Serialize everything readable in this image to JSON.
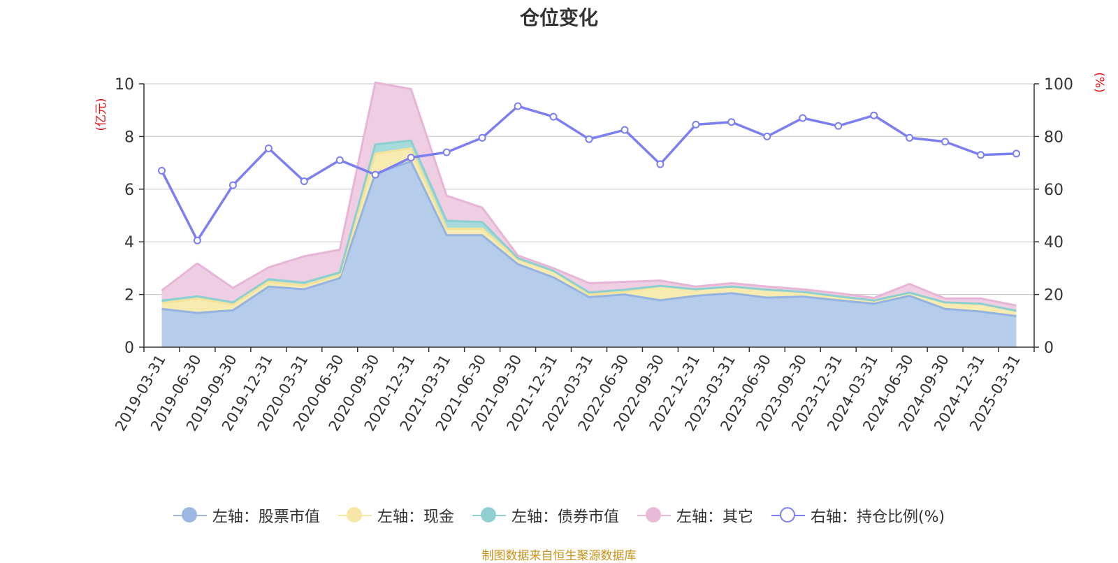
{
  "chart_data": {
    "type": "area",
    "title": "仓位变化",
    "left_unit": "(亿元)",
    "right_unit": "(%)",
    "left_ylim": [
      0,
      10
    ],
    "left_ticks": [
      0,
      2,
      4,
      6,
      8,
      10
    ],
    "right_ylim": [
      0,
      100
    ],
    "right_ticks": [
      0,
      20,
      40,
      60,
      80,
      100
    ],
    "categories": [
      "2019-03-31",
      "2019-06-30",
      "2019-09-30",
      "2019-12-31",
      "2020-03-31",
      "2020-06-30",
      "2020-09-30",
      "2020-12-31",
      "2021-03-31",
      "2021-06-30",
      "2021-09-30",
      "2021-12-31",
      "2022-03-31",
      "2022-06-30",
      "2022-09-30",
      "2022-12-31",
      "2023-03-31",
      "2023-06-30",
      "2023-09-30",
      "2023-12-31",
      "2024-03-31",
      "2024-06-30",
      "2024-09-30",
      "2024-12-31",
      "2025-03-31"
    ],
    "series": [
      {
        "name": "左轴：股票市值",
        "axis": "left",
        "kind": "stack",
        "values": [
          1.45,
          1.3,
          1.4,
          2.3,
          2.2,
          2.62,
          6.6,
          7.05,
          4.25,
          4.25,
          3.15,
          2.65,
          1.9,
          2.0,
          1.78,
          1.95,
          2.05,
          1.88,
          1.92,
          1.78,
          1.65,
          1.95,
          1.45,
          1.35,
          1.18
        ]
      },
      {
        "name": "左轴：现金",
        "axis": "left",
        "kind": "stack",
        "values": [
          0.22,
          0.55,
          0.22,
          0.18,
          0.15,
          0.12,
          0.75,
          0.5,
          0.25,
          0.25,
          0.18,
          0.25,
          0.1,
          0.1,
          0.55,
          0.25,
          0.25,
          0.3,
          0.18,
          0.15,
          0.12,
          0.12,
          0.25,
          0.3,
          0.2
        ]
      },
      {
        "name": "左轴：债券市值",
        "axis": "left",
        "kind": "stack",
        "values": [
          0.1,
          0.08,
          0.08,
          0.1,
          0.1,
          0.1,
          0.35,
          0.3,
          0.3,
          0.25,
          0.05,
          0.0,
          0.08,
          0.08,
          0.0,
          0.0,
          0.0,
          0.0,
          0.0,
          0.0,
          0.0,
          0.0,
          0.0,
          0.0,
          0.0
        ]
      },
      {
        "name": "左轴：其它",
        "axis": "left",
        "kind": "stack",
        "values": [
          0.38,
          1.25,
          0.55,
          0.45,
          1.0,
          0.86,
          2.35,
          1.95,
          0.95,
          0.55,
          0.1,
          0.1,
          0.35,
          0.3,
          0.2,
          0.1,
          0.13,
          0.12,
          0.1,
          0.12,
          0.1,
          0.33,
          0.15,
          0.2,
          0.2
        ]
      },
      {
        "name": "右轴：持仓比例(%)",
        "axis": "right",
        "kind": "line",
        "values": [
          67,
          40.5,
          61.5,
          75.5,
          63,
          71,
          65.5,
          72,
          74,
          79.5,
          91.5,
          87.5,
          79,
          82.5,
          69.5,
          84.5,
          85.5,
          80,
          87,
          84,
          88,
          79.5,
          78,
          73,
          73.5
        ]
      }
    ],
    "colors": {
      "stock": "#b6cceb",
      "stock_line": "#94b3e0",
      "cash": "#f8ebb0",
      "cash_line": "#f4e29a",
      "bond": "#a6dbdc",
      "bond_line": "#8ccfd1",
      "other": "#efcde3",
      "other_line": "#e7b5d6",
      "ratio": "#7b7ff0",
      "unit": "#e01010"
    },
    "grid": true,
    "legend_position": "bottom"
  },
  "legend": [
    {
      "label": "左轴：股票市值",
      "color": "#9bb7e2",
      "filled": true
    },
    {
      "label": "左轴：现金",
      "color": "#f7e6a6",
      "filled": true
    },
    {
      "label": "左轴：债券市值",
      "color": "#91d0d2",
      "filled": true
    },
    {
      "label": "左轴：其它",
      "color": "#e9b9d8",
      "filled": true
    },
    {
      "label": "右轴：持仓比例(%)",
      "color": "#7b7ff0",
      "filled": false
    }
  ],
  "source_text": "制图数据来自恒生聚源数据库"
}
